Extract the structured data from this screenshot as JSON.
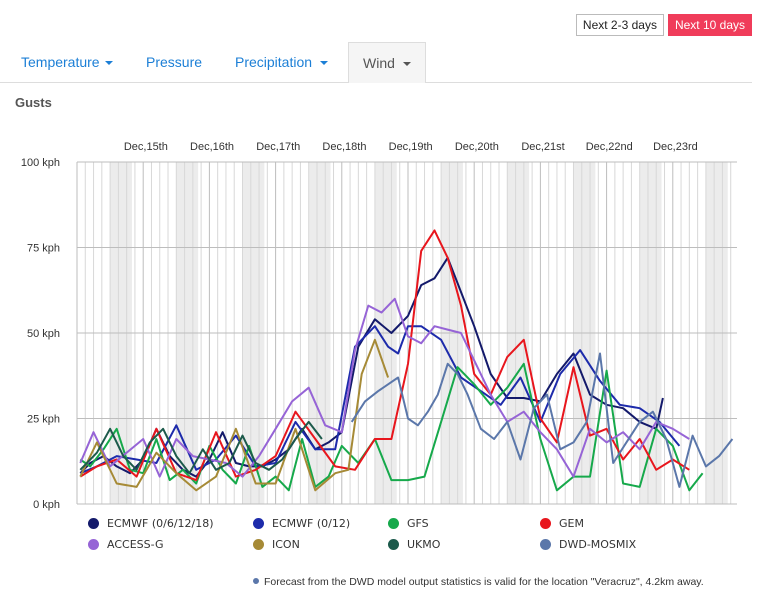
{
  "range_buttons": [
    {
      "label": "Next 2-3 days",
      "active": false
    },
    {
      "label": "Next 10 days",
      "active": true
    }
  ],
  "tabs": [
    {
      "label": "Temperature",
      "dropdown": true,
      "active": false
    },
    {
      "label": "Pressure",
      "dropdown": false,
      "active": false
    },
    {
      "label": "Precipitation",
      "dropdown": true,
      "active": false
    },
    {
      "label": "Wind",
      "dropdown": true,
      "active": true
    }
  ],
  "chart_title": "Gusts",
  "footnote": "Forecast from the DWD model output statistics is valid for the location \"Veracruz\", 4.2km away.",
  "colors": {
    "accent": "#1c7fd6",
    "active_button": "#f03c5a",
    "shaded_day_band": "#ececec"
  },
  "chart_data": {
    "type": "line",
    "title": "Gusts",
    "ylabel": "",
    "yunit": "kph",
    "ylim": [
      0,
      100
    ],
    "yticks": [
      0,
      25,
      50,
      75,
      100
    ],
    "ytick_labels": [
      "0 kph",
      "25 kph",
      "50 kph",
      "75 kph",
      "100 kph"
    ],
    "xlim_days": [
      14,
      23.97
    ],
    "xtick_labels": [
      "Dec,15th",
      "Dec,16th",
      "Dec,17th",
      "Dec,18th",
      "Dec,19th",
      "Dec,20th",
      "Dec,21st",
      "Dec,22nd",
      "Dec,23rd"
    ],
    "xtick_days": [
      15,
      16,
      17,
      18,
      19,
      20,
      21,
      22,
      23
    ],
    "grid": true,
    "legend_position": "bottom",
    "series": [
      {
        "name": "ECMWF (0/6/12/18)",
        "color": "#141a6b",
        "x": [
          14.05,
          14.2,
          14.4,
          14.6,
          14.8,
          15.0,
          15.2,
          15.4,
          15.6,
          15.8,
          16.0,
          16.2,
          16.4,
          16.6,
          16.8,
          17.0,
          17.2,
          17.4,
          17.6,
          17.8,
          18.0,
          18.25,
          18.5,
          18.75,
          19.0,
          19.2,
          19.4,
          19.6,
          19.8,
          20.0,
          20.25,
          20.5,
          20.75,
          21.0,
          21.25,
          21.5,
          21.75,
          22.0,
          22.25,
          22.5,
          22.75,
          22.85
        ],
        "y": [
          9,
          12,
          14,
          11,
          9,
          13,
          22,
          14,
          10,
          8,
          13,
          21,
          12,
          11,
          11,
          13,
          16,
          22,
          16,
          18,
          21,
          46,
          54,
          50,
          55,
          64,
          66,
          72,
          62,
          52,
          38,
          31,
          31,
          30,
          38,
          44,
          32,
          29,
          28,
          24,
          22,
          31
        ]
      },
      {
        "name": "ECMWF (0/12)",
        "color": "#1d2bab",
        "x": [
          14.05,
          14.3,
          14.6,
          14.9,
          15.2,
          15.5,
          15.8,
          16.1,
          16.4,
          16.7,
          17.0,
          17.3,
          17.6,
          17.9,
          18.2,
          18.5,
          18.7,
          18.85,
          19.0,
          19.2,
          19.5,
          19.8,
          20.1,
          20.4,
          20.7,
          21.0,
          21.3,
          21.6,
          21.9,
          22.2,
          22.5,
          22.8,
          23.1
        ],
        "y": [
          9,
          11,
          14,
          13,
          12,
          23,
          10,
          13,
          20,
          11,
          12,
          24,
          16,
          16,
          46,
          52,
          46,
          44,
          52,
          52,
          48,
          37,
          33,
          29,
          37,
          24,
          38,
          45,
          36,
          29,
          28,
          24,
          17
        ]
      },
      {
        "name": "GFS",
        "color": "#16a94b",
        "x": [
          14.05,
          14.2,
          14.4,
          14.6,
          14.8,
          15.0,
          15.2,
          15.4,
          15.6,
          15.8,
          16.0,
          16.2,
          16.4,
          16.6,
          16.8,
          17.0,
          17.2,
          17.4,
          17.6,
          17.8,
          18.0,
          18.25,
          18.5,
          18.75,
          19.0,
          19.25,
          19.5,
          19.75,
          20.0,
          20.25,
          20.5,
          20.75,
          21.0,
          21.25,
          21.5,
          21.75,
          22.0,
          22.25,
          22.5,
          22.75,
          23.0,
          23.25,
          23.45
        ],
        "y": [
          13,
          11,
          16,
          22,
          10,
          9,
          19,
          7,
          10,
          6,
          17,
          10,
          6,
          17,
          5,
          8,
          4,
          19,
          5,
          8,
          17,
          12,
          19,
          7,
          7,
          8,
          24,
          40,
          35,
          29,
          34,
          41,
          19,
          4,
          8,
          8,
          39,
          6,
          5,
          22,
          17,
          4,
          9
        ]
      },
      {
        "name": "GEM",
        "color": "#e8161d",
        "x": [
          14.05,
          14.3,
          14.6,
          14.9,
          15.2,
          15.5,
          15.8,
          16.1,
          16.4,
          16.7,
          17.0,
          17.3,
          17.6,
          17.9,
          18.2,
          18.5,
          18.75,
          19.0,
          19.2,
          19.4,
          19.6,
          19.8,
          20.0,
          20.25,
          20.5,
          20.75,
          21.0,
          21.25,
          21.5,
          21.75,
          22.0,
          22.25,
          22.5,
          22.75,
          23.0,
          23.25
        ],
        "y": [
          8,
          11,
          13,
          8,
          22,
          9,
          7,
          21,
          8,
          10,
          14,
          27,
          19,
          11,
          10,
          19,
          19,
          41,
          74,
          80,
          72,
          58,
          38,
          32,
          43,
          48,
          25,
          18,
          40,
          20,
          22,
          13,
          19,
          10,
          13,
          10
        ]
      },
      {
        "name": "ACCESS-G",
        "color": "#9664d6",
        "x": [
          14.05,
          14.25,
          14.5,
          14.75,
          15.0,
          15.25,
          15.5,
          15.75,
          16.0,
          16.25,
          16.5,
          16.75,
          17.0,
          17.25,
          17.5,
          17.75,
          18.0,
          18.2,
          18.4,
          18.6,
          18.8,
          19.0,
          19.2,
          19.4,
          19.6,
          19.8,
          20.0,
          20.25,
          20.5,
          20.75,
          21.0,
          21.25,
          21.5,
          21.75,
          22.0,
          22.25,
          22.5,
          22.75,
          23.0,
          23.25
        ],
        "y": [
          12,
          21,
          11,
          15,
          19,
          8,
          19,
          14,
          13,
          12,
          8,
          14,
          22,
          30,
          34,
          23,
          21,
          45,
          58,
          56,
          60,
          49,
          47,
          52,
          51,
          50,
          42,
          32,
          24,
          27,
          21,
          16,
          8,
          22,
          18,
          21,
          16,
          24,
          22,
          19
        ]
      },
      {
        "name": "ICON",
        "color": "#a68a36",
        "x": [
          14.05,
          14.3,
          14.6,
          14.9,
          15.2,
          15.5,
          15.8,
          16.1,
          16.4,
          16.7,
          17.0,
          17.3,
          17.6,
          17.9,
          18.1,
          18.3,
          18.5,
          18.7
        ],
        "y": [
          8,
          18,
          6,
          5,
          15,
          9,
          4,
          8,
          22,
          6,
          6,
          22,
          4,
          9,
          10,
          38,
          48,
          37
        ]
      },
      {
        "name": "UKMO",
        "color": "#1c5a4b",
        "x": [
          14.05,
          14.3,
          14.5,
          14.7,
          14.9,
          15.1,
          15.3,
          15.5,
          15.7,
          15.9,
          16.1,
          16.3,
          16.5,
          16.7,
          16.9,
          17.1,
          17.3,
          17.5,
          17.7
        ],
        "y": [
          10,
          15,
          22,
          14,
          10,
          18,
          22,
          14,
          9,
          16,
          10,
          12,
          20,
          12,
          10,
          13,
          19,
          24,
          19
        ]
      },
      {
        "name": "DWD-MOSMIX",
        "color": "#5b77aa",
        "x": [
          18.15,
          18.35,
          18.55,
          18.7,
          18.85,
          19.0,
          19.15,
          19.3,
          19.45,
          19.6,
          19.75,
          19.9,
          20.1,
          20.3,
          20.5,
          20.7,
          20.9,
          21.1,
          21.3,
          21.5,
          21.7,
          21.9,
          22.1,
          22.3,
          22.5,
          22.7,
          22.9,
          23.1,
          23.3,
          23.5,
          23.7,
          23.9
        ],
        "y": [
          24,
          30,
          33,
          35,
          37,
          25,
          23,
          27,
          32,
          41,
          38,
          32,
          22,
          19,
          24,
          13,
          28,
          32,
          16,
          18,
          24,
          44,
          12,
          18,
          24,
          27,
          19,
          5,
          20,
          11,
          14,
          19
        ]
      }
    ]
  }
}
